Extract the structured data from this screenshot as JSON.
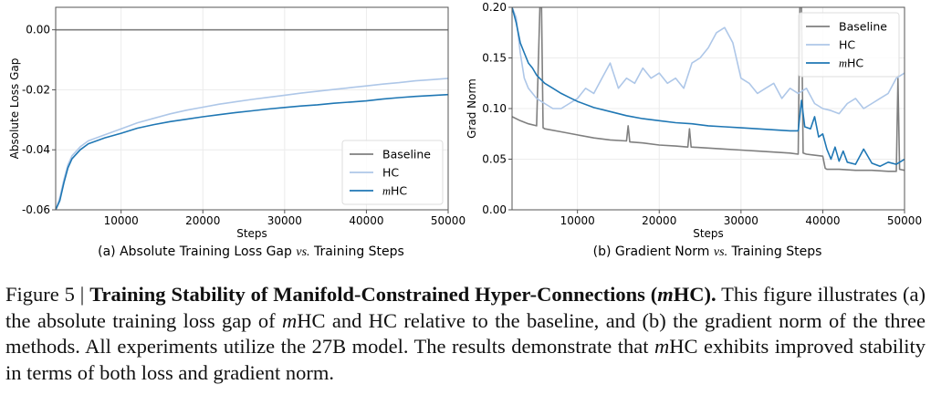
{
  "chart_data": [
    {
      "type": "line",
      "caption": "(a) Absolute Training Loss Gap vs. Training Steps",
      "caption_parts": [
        "(a) Absolute Training Loss Gap ",
        "vs.",
        " Training Steps"
      ],
      "xlabel": "Steps",
      "ylabel": "Absolute Loss Gap",
      "xlim": [
        2000,
        50000
      ],
      "ylim": [
        -0.06,
        0.0075
      ],
      "xticks": [
        10000,
        20000,
        30000,
        40000,
        50000
      ],
      "xtick_labels": [
        "10000",
        "20000",
        "30000",
        "40000",
        "50000"
      ],
      "yticks": [
        -0.06,
        -0.04,
        -0.02,
        0.0
      ],
      "ytick_labels": [
        "-0.06",
        "-0.04",
        "-0.02",
        "0.00"
      ],
      "grid": true,
      "legend_position": "bottom-right",
      "series": [
        {
          "name": "Baseline",
          "color": "#7f7f7f",
          "x": [
            2000,
            50000
          ],
          "y": [
            0.0,
            0.0
          ]
        },
        {
          "name": "HC",
          "color": "#aec7e8",
          "x": [
            2000,
            2500,
            3000,
            3500,
            4000,
            5000,
            6000,
            8000,
            10000,
            12000,
            14000,
            16000,
            18000,
            20000,
            22000,
            24000,
            26000,
            28000,
            30000,
            32000,
            34000,
            36000,
            38000,
            40000,
            42000,
            44000,
            46000,
            48000,
            50000
          ],
          "y": [
            -0.06,
            -0.056,
            -0.05,
            -0.045,
            -0.042,
            -0.039,
            -0.037,
            -0.035,
            -0.033,
            -0.031,
            -0.0295,
            -0.028,
            -0.0268,
            -0.0258,
            -0.0248,
            -0.024,
            -0.0232,
            -0.0225,
            -0.0218,
            -0.0211,
            -0.0205,
            -0.0199,
            -0.0193,
            -0.0187,
            -0.0181,
            -0.0176,
            -0.017,
            -0.0166,
            -0.0162
          ]
        },
        {
          "name": "mHC",
          "color": "#1f77b4",
          "label_italic_prefix": "m",
          "label_rest": "HC",
          "x": [
            2000,
            2500,
            3000,
            3500,
            4000,
            5000,
            6000,
            8000,
            10000,
            12000,
            14000,
            16000,
            18000,
            20000,
            22000,
            24000,
            26000,
            28000,
            30000,
            32000,
            34000,
            36000,
            38000,
            40000,
            42000,
            44000,
            46000,
            48000,
            50000
          ],
          "y": [
            -0.06,
            -0.057,
            -0.051,
            -0.046,
            -0.043,
            -0.04,
            -0.038,
            -0.036,
            -0.0345,
            -0.0328,
            -0.0316,
            -0.0306,
            -0.0298,
            -0.029,
            -0.0283,
            -0.0276,
            -0.027,
            -0.0264,
            -0.0259,
            -0.0254,
            -0.025,
            -0.0245,
            -0.0241,
            -0.0237,
            -0.0231,
            -0.0226,
            -0.0222,
            -0.0219,
            -0.0216
          ]
        }
      ]
    },
    {
      "type": "line",
      "caption": "(b) Gradient Norm vs. Training Steps",
      "caption_parts": [
        "(b) Gradient Norm ",
        "vs.",
        " Training Steps"
      ],
      "xlabel": "Steps",
      "ylabel": "Grad Norm",
      "xlim": [
        2000,
        50000
      ],
      "ylim": [
        0.0,
        0.2
      ],
      "xticks": [
        10000,
        20000,
        30000,
        40000,
        50000
      ],
      "xtick_labels": [
        "10000",
        "20000",
        "30000",
        "40000",
        "50000"
      ],
      "yticks": [
        0.0,
        0.05,
        0.1,
        0.15,
        0.2
      ],
      "ytick_labels": [
        "0.00",
        "0.05",
        "0.10",
        "0.15",
        "0.20"
      ],
      "grid": true,
      "legend_position": "top-right",
      "series": [
        {
          "name": "Baseline",
          "color": "#7f7f7f",
          "x": [
            2000,
            3000,
            4000,
            5000,
            5400,
            5600,
            5800,
            6000,
            8000,
            10000,
            12000,
            14000,
            16000,
            16200,
            16400,
            18000,
            20000,
            22000,
            23500,
            23700,
            23900,
            26000,
            28000,
            30000,
            32000,
            34000,
            36000,
            37000,
            37200,
            37400,
            37600,
            38000,
            40000,
            40300,
            40500,
            42000,
            44000,
            46000,
            48000,
            49000,
            49200,
            49400,
            50000
          ],
          "y": [
            0.092,
            0.088,
            0.085,
            0.083,
            0.2,
            0.2,
            0.081,
            0.08,
            0.077,
            0.074,
            0.071,
            0.069,
            0.068,
            0.083,
            0.067,
            0.066,
            0.064,
            0.063,
            0.062,
            0.08,
            0.062,
            0.061,
            0.06,
            0.059,
            0.058,
            0.057,
            0.056,
            0.055,
            0.2,
            0.2,
            0.056,
            0.055,
            0.053,
            0.041,
            0.04,
            0.04,
            0.039,
            0.039,
            0.038,
            0.038,
            0.13,
            0.04,
            0.039
          ]
        },
        {
          "name": "HC",
          "color": "#aec7e8",
          "x": [
            2000,
            2500,
            3000,
            3500,
            4000,
            5000,
            6000,
            7000,
            8000,
            9000,
            10000,
            11000,
            12000,
            13000,
            14000,
            15000,
            16000,
            17000,
            18000,
            19000,
            20000,
            21000,
            22000,
            23000,
            24000,
            25000,
            26000,
            27000,
            28000,
            29000,
            30000,
            31000,
            32000,
            33000,
            34000,
            35000,
            36000,
            37000,
            38000,
            39000,
            40000,
            41000,
            42000,
            43000,
            44000,
            45000,
            46000,
            47000,
            48000,
            49000,
            50000
          ],
          "y": [
            0.2,
            0.19,
            0.155,
            0.13,
            0.12,
            0.11,
            0.105,
            0.1,
            0.1,
            0.105,
            0.11,
            0.12,
            0.115,
            0.13,
            0.145,
            0.12,
            0.13,
            0.125,
            0.14,
            0.13,
            0.135,
            0.125,
            0.13,
            0.12,
            0.145,
            0.15,
            0.16,
            0.175,
            0.18,
            0.165,
            0.13,
            0.125,
            0.115,
            0.12,
            0.125,
            0.11,
            0.12,
            0.115,
            0.12,
            0.105,
            0.1,
            0.098,
            0.095,
            0.105,
            0.11,
            0.1,
            0.105,
            0.11,
            0.115,
            0.13,
            0.135
          ]
        },
        {
          "name": "mHC",
          "color": "#1f77b4",
          "label_italic_prefix": "m",
          "label_rest": "HC",
          "x": [
            2000,
            2500,
            3000,
            3500,
            4000,
            4500,
            5000,
            6000,
            7000,
            8000,
            9000,
            10000,
            12000,
            14000,
            16000,
            18000,
            20000,
            22000,
            24000,
            26000,
            28000,
            30000,
            32000,
            34000,
            36000,
            37000,
            37400,
            37800,
            38500,
            39000,
            39500,
            40000,
            40500,
            41000,
            41500,
            42000,
            42500,
            43000,
            44000,
            45000,
            46000,
            47000,
            48000,
            49000,
            50000
          ],
          "y": [
            0.2,
            0.185,
            0.165,
            0.155,
            0.145,
            0.14,
            0.133,
            0.125,
            0.12,
            0.115,
            0.111,
            0.107,
            0.101,
            0.097,
            0.093,
            0.09,
            0.088,
            0.086,
            0.085,
            0.083,
            0.082,
            0.081,
            0.08,
            0.079,
            0.078,
            0.078,
            0.108,
            0.082,
            0.08,
            0.092,
            0.072,
            0.075,
            0.06,
            0.05,
            0.062,
            0.048,
            0.058,
            0.047,
            0.045,
            0.06,
            0.046,
            0.043,
            0.047,
            0.045,
            0.05
          ]
        }
      ]
    }
  ],
  "figure_caption": {
    "prefix": "Figure 5 | ",
    "bold_title_1": "Training Stability of Manifold-Constrained Hyper-Connections (",
    "bold_title_italic": "m",
    "bold_title_2": "HC).",
    "text_1": " This figure illustrates (a) the absolute training loss gap of ",
    "italic_m1": "m",
    "text_2": "HC and HC relative to the baseline, and (b) the gradient norm of the three methods. All experiments utilize the 27B model. The results demonstrate that ",
    "italic_m2": "m",
    "text_3": "HC exhibits improved stability in terms of both loss and gradient norm."
  }
}
